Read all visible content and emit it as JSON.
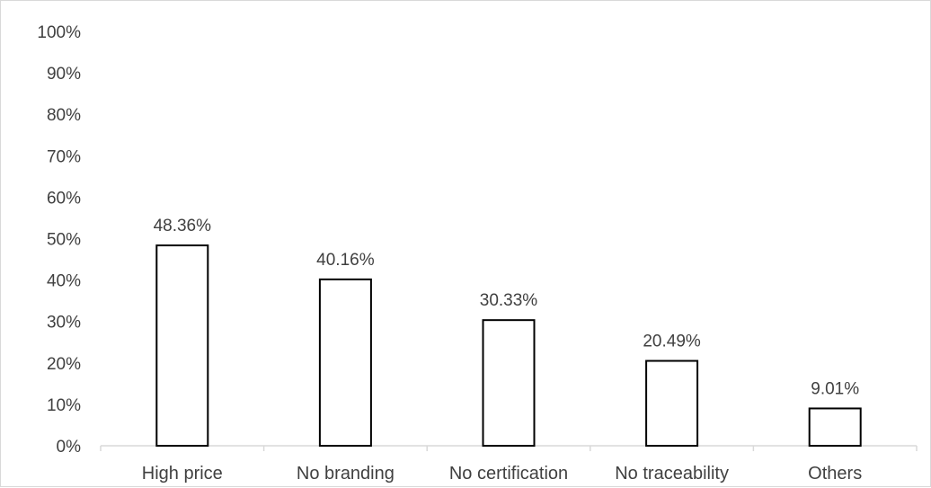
{
  "chart_data": {
    "type": "bar",
    "categories": [
      "High price",
      "No branding",
      "No certification",
      "No traceability",
      "Others"
    ],
    "values": [
      48.36,
      40.16,
      30.33,
      20.49,
      9.01
    ],
    "data_labels": [
      "48.36%",
      "40.16%",
      "30.33%",
      "20.49%",
      "9.01%"
    ],
    "y_ticks": [
      "0%",
      "10%",
      "20%",
      "30%",
      "40%",
      "50%",
      "60%",
      "70%",
      "80%",
      "90%",
      "100%"
    ],
    "ylim": [
      0,
      100
    ],
    "grid": false,
    "legend": "none",
    "bar_fill": "#ffffff",
    "bar_stroke": "#000000",
    "axis_color": "#d9d9d9",
    "text_color": "#404040"
  }
}
